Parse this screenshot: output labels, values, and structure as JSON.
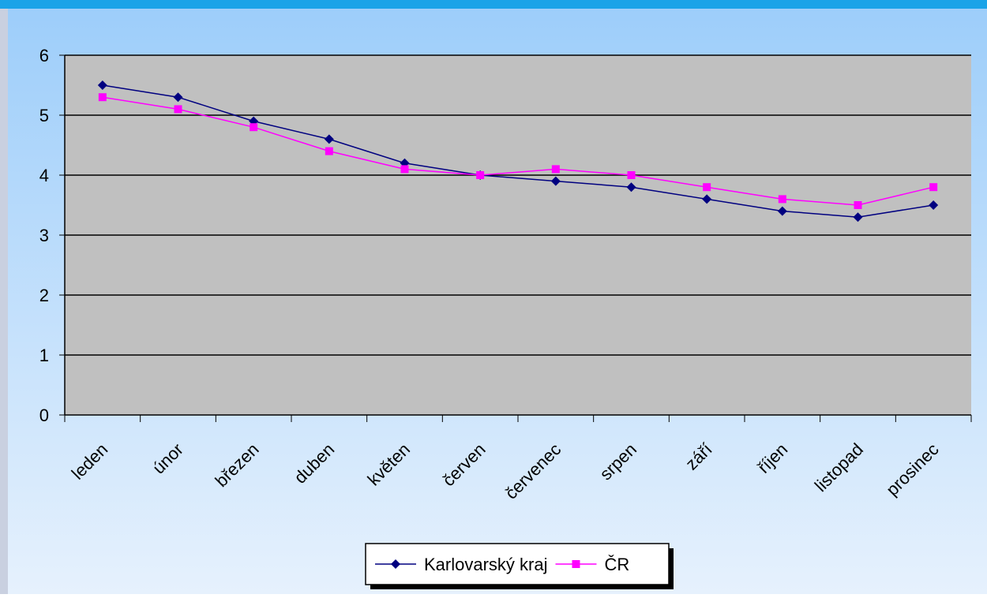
{
  "colors": {
    "top_bar": "#1aa3e8",
    "bg_top": "#9ccdfa",
    "bg_bottom": "#e6f1fd",
    "left_edge": "#c9d0e0",
    "plot_bg": "#c0c0c0",
    "gridline": "#000000",
    "series_colors": [
      "#000080",
      "#ff00ff"
    ]
  },
  "chart_data": {
    "type": "line",
    "categories": [
      "leden",
      "únor",
      "březen",
      "duben",
      "květen",
      "červen",
      "červenec",
      "srpen",
      "září",
      "říjen",
      "listopad",
      "prosinec"
    ],
    "series": [
      {
        "name": "Karlovarský kraj",
        "marker": "diamond",
        "values": [
          5.5,
          5.3,
          4.9,
          4.6,
          4.2,
          4.0,
          3.9,
          3.8,
          3.6,
          3.4,
          3.3,
          3.5
        ]
      },
      {
        "name": "ČR",
        "marker": "square",
        "values": [
          5.3,
          5.1,
          4.8,
          4.4,
          4.1,
          4.0,
          4.1,
          4.0,
          3.8,
          3.6,
          3.5,
          3.8
        ]
      }
    ],
    "y_ticks": [
      "0",
      "1",
      "2",
      "3",
      "4",
      "5",
      "6"
    ],
    "ylim": [
      0,
      6
    ],
    "grid": true,
    "legend_position": "bottom"
  }
}
